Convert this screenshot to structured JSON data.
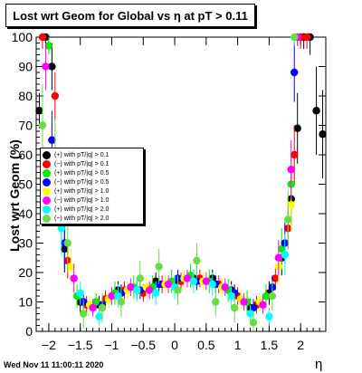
{
  "title": "Lost wrt Geom for Global vs  η at pT > 0.11",
  "footer": "Wed Nov 11 11:00:11 2020",
  "chart_data": {
    "type": "scatter",
    "title": "Lost wrt Geom for Global vs  η at pT > 0.11",
    "xlabel": "η",
    "ylabel": "Lost wrt Geom (%)",
    "xlim": [
      -2.2,
      2.4
    ],
    "ylim": [
      0,
      100
    ],
    "x_ticks": [
      -2,
      -1.5,
      -1,
      -0.5,
      0,
      0.5,
      1,
      1.5,
      2
    ],
    "x_tick_labels": [
      "−2",
      "−1.5",
      "−1",
      "−0.5",
      "0",
      "0.5",
      "1",
      "1.5",
      "2"
    ],
    "y_ticks": [
      0,
      10,
      20,
      30,
      40,
      50,
      60,
      70,
      80,
      90,
      100
    ],
    "y_tick_labels": [
      "0",
      "10",
      "20",
      "30",
      "40",
      "50",
      "60",
      "70",
      "80",
      "90",
      "100"
    ],
    "legend_position": "left-middle",
    "series": [
      {
        "name": "(+) with pT/|q| > 0.1",
        "color": "#000000",
        "x": [
          -2.15,
          -2.05,
          -1.95,
          -1.75,
          -1.5,
          -1.2,
          -0.9,
          -0.6,
          -0.3,
          0.0,
          0.3,
          0.6,
          0.9,
          1.2,
          1.5,
          1.7,
          1.85,
          1.95,
          2.05,
          2.15,
          2.25,
          2.35
        ],
        "y": [
          75,
          100,
          90,
          28,
          10,
          9,
          14,
          14,
          17,
          16,
          18,
          18,
          14,
          8,
          13,
          25,
          45,
          69,
          100,
          100,
          75,
          67
        ],
        "err": [
          6,
          4,
          8,
          8,
          4,
          3,
          3,
          3,
          3,
          3,
          3,
          3,
          3,
          3,
          4,
          6,
          9,
          12,
          4,
          6,
          15,
          15
        ]
      },
      {
        "name": "(−) with pT/|q| > 0.1",
        "color": "#ff0000",
        "x": [
          -2.1,
          -1.9,
          -1.7,
          -1.4,
          -1.1,
          -0.8,
          -0.5,
          -0.2,
          0.1,
          0.4,
          0.7,
          1.0,
          1.3,
          1.6,
          1.8,
          1.9,
          2.0,
          2.1
        ],
        "y": [
          100,
          80,
          24,
          9,
          11,
          14,
          13,
          16,
          17,
          18,
          16,
          12,
          9,
          18,
          35,
          60,
          100,
          100
        ],
        "err": [
          4,
          8,
          6,
          3,
          3,
          3,
          3,
          3,
          3,
          3,
          3,
          3,
          3,
          4,
          7,
          10,
          4,
          4
        ]
      },
      {
        "name": "(+) with pT/|q| > 0.5",
        "color": "#00ee00",
        "x": [
          -2.0,
          -1.8,
          -1.55,
          -1.25,
          -0.95,
          -0.65,
          -0.35,
          -0.05,
          0.25,
          0.55,
          0.85,
          1.15,
          1.45,
          1.7,
          1.85,
          1.95
        ],
        "y": [
          97,
          40,
          12,
          10,
          13,
          15,
          15,
          17,
          19,
          17,
          14,
          10,
          12,
          28,
          50,
          100
        ],
        "err": [
          3,
          9,
          4,
          3,
          4,
          4,
          4,
          4,
          4,
          4,
          4,
          4,
          4,
          7,
          10,
          3
        ]
      },
      {
        "name": "(−) with pT/|q| > 0.5",
        "color": "#0000ff",
        "x": [
          -1.95,
          -1.75,
          -1.45,
          -1.15,
          -0.85,
          -0.55,
          -0.25,
          0.05,
          0.35,
          0.65,
          0.95,
          1.25,
          1.55,
          1.75,
          1.9
        ],
        "y": [
          65,
          30,
          10,
          9,
          13,
          14,
          16,
          18,
          17,
          16,
          13,
          8,
          15,
          30,
          88
        ],
        "err": [
          10,
          8,
          3,
          3,
          3,
          3,
          3,
          3,
          3,
          3,
          3,
          3,
          4,
          7,
          10
        ]
      },
      {
        "name": "(+) with pT/|q| > 1.0",
        "color": "#ffff00",
        "x": [
          -1.9,
          -1.65,
          -1.35,
          -1.05,
          -0.75,
          -0.45,
          -0.15,
          0.15,
          0.45,
          0.75,
          1.05,
          1.35,
          1.65,
          1.85
        ],
        "y": [
          50,
          22,
          9,
          11,
          14,
          15,
          16,
          18,
          17,
          15,
          11,
          10,
          22,
          43
        ],
        "err": [
          10,
          6,
          3,
          3,
          3,
          3,
          3,
          3,
          3,
          3,
          3,
          3,
          6,
          9
        ]
      },
      {
        "name": "(−) with pT/|q| > 1.0",
        "color": "#ff00ff",
        "x": [
          -2.05,
          -1.85,
          -1.6,
          -1.3,
          -1.0,
          -0.7,
          -0.4,
          -0.1,
          0.2,
          0.5,
          0.8,
          1.1,
          1.4,
          1.65,
          1.85,
          1.95
        ],
        "y": [
          90,
          45,
          18,
          8,
          12,
          15,
          14,
          16,
          18,
          17,
          15,
          10,
          9,
          25,
          55,
          100
        ],
        "err": [
          8,
          10,
          5,
          3,
          3,
          3,
          3,
          3,
          3,
          3,
          3,
          3,
          3,
          6,
          10,
          3
        ]
      },
      {
        "name": "(+) with pT/|q| > 2.0",
        "color": "#00ffff",
        "x": [
          -1.8,
          -1.5,
          -1.2,
          -0.9,
          -0.6,
          -0.3,
          0.0,
          0.3,
          0.6,
          0.9,
          1.2,
          1.5,
          1.75
        ],
        "y": [
          35,
          13,
          5,
          12,
          14,
          13,
          15,
          17,
          16,
          12,
          6,
          5,
          26
        ],
        "err": [
          9,
          4,
          3,
          4,
          4,
          4,
          4,
          4,
          4,
          4,
          3,
          3,
          7
        ]
      },
      {
        "name": "(−) with pT/|q| > 2.0",
        "color": "#66dd44",
        "x": [
          -2.1,
          -1.9,
          -1.7,
          -1.45,
          -1.15,
          -0.85,
          -0.55,
          -0.25,
          0.05,
          0.35,
          0.65,
          0.95,
          1.25,
          1.55,
          1.8,
          1.9
        ],
        "y": [
          70,
          60,
          30,
          6,
          8,
          10,
          18,
          22,
          14,
          24,
          10,
          8,
          3,
          12,
          38,
          100
        ],
        "err": [
          14,
          12,
          10,
          5,
          5,
          5,
          6,
          6,
          5,
          6,
          5,
          5,
          4,
          5,
          10,
          3
        ]
      }
    ]
  }
}
